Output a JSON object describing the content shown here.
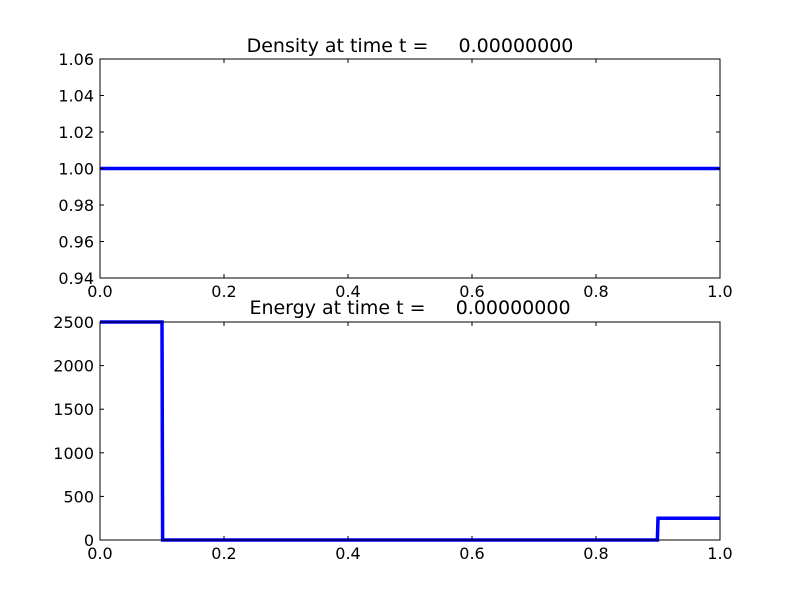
{
  "chart_data": [
    {
      "type": "line",
      "title": "Density at time t =     0.00000000",
      "xlim": [
        0.0,
        1.0
      ],
      "ylim": [
        0.94,
        1.06
      ],
      "xticks": [
        "0.0",
        "0.2",
        "0.4",
        "0.6",
        "0.8",
        "1.0"
      ],
      "yticks": [
        "0.94",
        "0.96",
        "0.98",
        "1.00",
        "1.02",
        "1.04",
        "1.06"
      ],
      "grid": false,
      "series": [
        {
          "color": "#0000ff",
          "x": [
            0.0,
            1.0
          ],
          "y": [
            1.0,
            1.0
          ]
        }
      ]
    },
    {
      "type": "line",
      "title": "Energy at time t =     0.00000000",
      "xlim": [
        0.0,
        1.0
      ],
      "ylim": [
        0,
        2500
      ],
      "xticks": [
        "0.0",
        "0.2",
        "0.4",
        "0.6",
        "0.8",
        "1.0"
      ],
      "yticks": [
        "0",
        "500",
        "1000",
        "1500",
        "2000",
        "2500"
      ],
      "grid": false,
      "series": [
        {
          "color": "#0000ff",
          "x": [
            0.0,
            0.1,
            0.101,
            0.899,
            0.9,
            1.0
          ],
          "y": [
            2500,
            2500,
            0.01,
            0.01,
            250,
            250
          ]
        }
      ]
    }
  ]
}
